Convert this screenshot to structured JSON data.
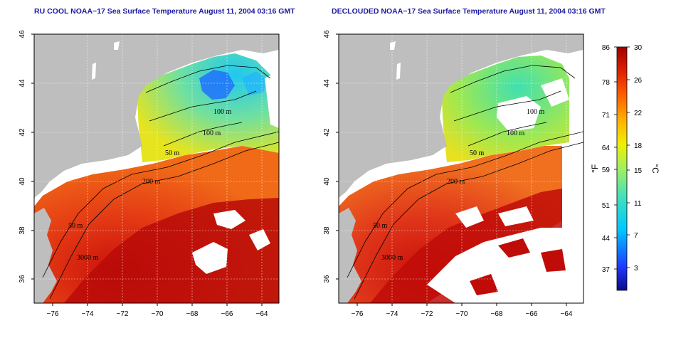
{
  "panels": [
    {
      "title": "RU COOL NOAA−17 Sea Surface Temperature August 11, 2004 03:16 GMT",
      "contour_labels": [
        "100 m",
        "100 m",
        "50 m",
        "200 m",
        "50 m",
        "3000 m"
      ]
    },
    {
      "title": "DECLOUDED NOAA−17 Sea Surface Temperature August 11, 2004 03:16 GMT",
      "contour_labels": [
        "100 m",
        "100 m",
        "50 m",
        "200 m",
        "50 m",
        "3000 m"
      ]
    }
  ],
  "axes": {
    "lon_ticks": [
      "−76",
      "−74",
      "−72",
      "−70",
      "−68",
      "−66",
      "−64"
    ],
    "lat_ticks": [
      "46",
      "44",
      "42",
      "40",
      "38",
      "36"
    ]
  },
  "colorbar": {
    "fahrenheit_label": "°F",
    "celsius_label": "°C",
    "fahrenheit_ticks": [
      "86",
      "78",
      "71",
      "64",
      "59",
      "51",
      "44",
      "37"
    ],
    "celsius_ticks": [
      "30",
      "26",
      "22",
      "18",
      "15",
      "11",
      "7",
      "3"
    ]
  },
  "colors": {
    "land": "#bebebe",
    "cloud": "#ffffff",
    "title": "#1a1aa0"
  }
}
